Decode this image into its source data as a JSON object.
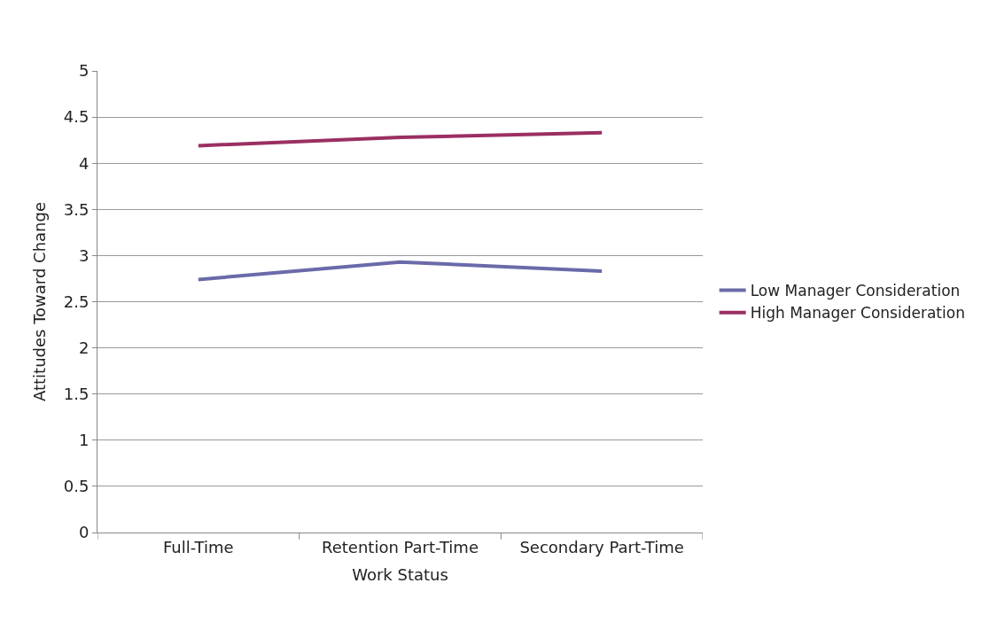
{
  "chart_data": {
    "type": "line",
    "xlabel": "Work Status",
    "ylabel": "Attitudes Toward Change",
    "categories": [
      "Full-Time",
      "Retention Part-Time",
      "Secondary Part-Time"
    ],
    "series": [
      {
        "name": "Low Manager Consideration",
        "color": "#6a6aaa",
        "values": [
          2.74,
          2.93,
          2.83
        ]
      },
      {
        "name": "High Manager Consideration",
        "color": "#9b2f62",
        "values": [
          4.19,
          4.28,
          4.33
        ]
      }
    ],
    "ylim": [
      0,
      5
    ],
    "yticks": [
      0,
      0.5,
      1,
      1.5,
      2,
      2.5,
      3,
      3.5,
      4,
      4.5,
      5
    ],
    "grid": "y",
    "legend": "right",
    "marker": "none",
    "line_style": "solid"
  }
}
